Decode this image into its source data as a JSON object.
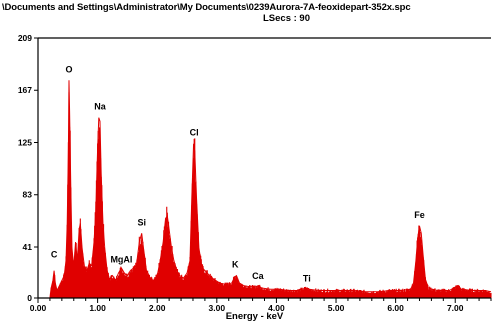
{
  "header": {
    "path": "\\Documents and Settings\\Administrator\\My Documents\\0239Aurora-7A-feoxidepart-352x.spc",
    "live_time": "LSecs : 90"
  },
  "chart_data": {
    "type": "line",
    "title": "\\Documents and Settings\\Administrator\\My Documents\\0239Aurora-7A-feoxidepart-352x.spc",
    "subtitle": "LSecs : 90",
    "xlabel": "Energy - keV",
    "ylabel": "",
    "xlim": [
      0,
      7.6
    ],
    "ylim": [
      0,
      209
    ],
    "x_ticks": [
      0,
      1,
      2,
      3,
      4,
      5,
      6,
      7
    ],
    "x_tick_labels": [
      "0.00",
      "1.00",
      "2.00",
      "3.00",
      "4.00",
      "5.00",
      "6.00",
      "7.00"
    ],
    "y_ticks": [
      0,
      41,
      83,
      125,
      167,
      209
    ],
    "y_tick_labels": [
      "0",
      "41",
      "83",
      "125",
      "167",
      "209"
    ],
    "series_color": "#e00000",
    "grid": false,
    "peaks": [
      {
        "label": "C",
        "x": 0.27,
        "y": 26
      },
      {
        "label": "O",
        "x": 0.52,
        "y": 175
      },
      {
        "label": "Na",
        "x": 1.04,
        "y": 145
      },
      {
        "label": "MgAl",
        "x": 1.4,
        "y": 22
      },
      {
        "label": "Si",
        "x": 1.74,
        "y": 52
      },
      {
        "label": "Cl",
        "x": 2.62,
        "y": 124
      },
      {
        "label": "K",
        "x": 3.31,
        "y": 18
      },
      {
        "label": "Ca",
        "x": 3.69,
        "y": 9
      },
      {
        "label": "Ti",
        "x": 4.51,
        "y": 7
      },
      {
        "label": "Fe",
        "x": 6.4,
        "y": 58
      }
    ],
    "spectrum": [
      [
        0.0,
        0
      ],
      [
        0.2,
        0
      ],
      [
        0.22,
        8
      ],
      [
        0.25,
        14
      ],
      [
        0.27,
        22
      ],
      [
        0.29,
        12
      ],
      [
        0.32,
        6
      ],
      [
        0.36,
        10
      ],
      [
        0.4,
        14
      ],
      [
        0.44,
        18
      ],
      [
        0.47,
        30
      ],
      [
        0.49,
        60
      ],
      [
        0.51,
        120
      ],
      [
        0.52,
        175
      ],
      [
        0.53,
        150
      ],
      [
        0.55,
        90
      ],
      [
        0.57,
        40
      ],
      [
        0.6,
        25
      ],
      [
        0.63,
        45
      ],
      [
        0.66,
        30
      ],
      [
        0.69,
        55
      ],
      [
        0.71,
        60
      ],
      [
        0.74,
        40
      ],
      [
        0.78,
        25
      ],
      [
        0.82,
        22
      ],
      [
        0.86,
        28
      ],
      [
        0.9,
        26
      ],
      [
        0.94,
        45
      ],
      [
        0.97,
        70
      ],
      [
        1.0,
        120
      ],
      [
        1.02,
        145
      ],
      [
        1.04,
        142
      ],
      [
        1.06,
        100
      ],
      [
        1.09,
        60
      ],
      [
        1.12,
        40
      ],
      [
        1.16,
        22
      ],
      [
        1.2,
        15
      ],
      [
        1.25,
        18
      ],
      [
        1.3,
        14
      ],
      [
        1.35,
        20
      ],
      [
        1.4,
        24
      ],
      [
        1.45,
        20
      ],
      [
        1.5,
        18
      ],
      [
        1.55,
        22
      ],
      [
        1.6,
        24
      ],
      [
        1.65,
        26
      ],
      [
        1.7,
        45
      ],
      [
        1.74,
        52
      ],
      [
        1.77,
        40
      ],
      [
        1.82,
        22
      ],
      [
        1.88,
        16
      ],
      [
        1.94,
        14
      ],
      [
        2.0,
        18
      ],
      [
        2.05,
        30
      ],
      [
        2.1,
        45
      ],
      [
        2.14,
        64
      ],
      [
        2.17,
        66
      ],
      [
        2.2,
        55
      ],
      [
        2.24,
        40
      ],
      [
        2.28,
        30
      ],
      [
        2.33,
        22
      ],
      [
        2.38,
        18
      ],
      [
        2.44,
        16
      ],
      [
        2.5,
        20
      ],
      [
        2.55,
        30
      ],
      [
        2.58,
        80
      ],
      [
        2.61,
        124
      ],
      [
        2.63,
        118
      ],
      [
        2.66,
        80
      ],
      [
        2.7,
        40
      ],
      [
        2.75,
        25
      ],
      [
        2.8,
        22
      ],
      [
        2.88,
        18
      ],
      [
        2.95,
        15
      ],
      [
        3.05,
        12
      ],
      [
        3.15,
        11
      ],
      [
        3.25,
        12
      ],
      [
        3.3,
        17
      ],
      [
        3.33,
        18
      ],
      [
        3.38,
        12
      ],
      [
        3.45,
        10
      ],
      [
        3.55,
        9
      ],
      [
        3.65,
        9
      ],
      [
        3.7,
        10
      ],
      [
        3.75,
        8
      ],
      [
        3.9,
        7
      ],
      [
        4.05,
        7
      ],
      [
        4.2,
        6
      ],
      [
        4.35,
        6
      ],
      [
        4.5,
        8
      ],
      [
        4.55,
        7
      ],
      [
        4.7,
        6
      ],
      [
        4.9,
        6
      ],
      [
        5.1,
        6
      ],
      [
        5.3,
        6
      ],
      [
        5.5,
        5
      ],
      [
        5.7,
        5
      ],
      [
        5.9,
        6
      ],
      [
        6.1,
        6
      ],
      [
        6.25,
        7
      ],
      [
        6.3,
        12
      ],
      [
        6.34,
        30
      ],
      [
        6.37,
        48
      ],
      [
        6.4,
        58
      ],
      [
        6.43,
        52
      ],
      [
        6.46,
        35
      ],
      [
        6.5,
        15
      ],
      [
        6.55,
        8
      ],
      [
        6.7,
        6
      ],
      [
        6.9,
        6
      ],
      [
        7.05,
        10
      ],
      [
        7.1,
        7
      ],
      [
        7.3,
        6
      ],
      [
        7.5,
        6
      ],
      [
        7.6,
        5
      ]
    ]
  }
}
